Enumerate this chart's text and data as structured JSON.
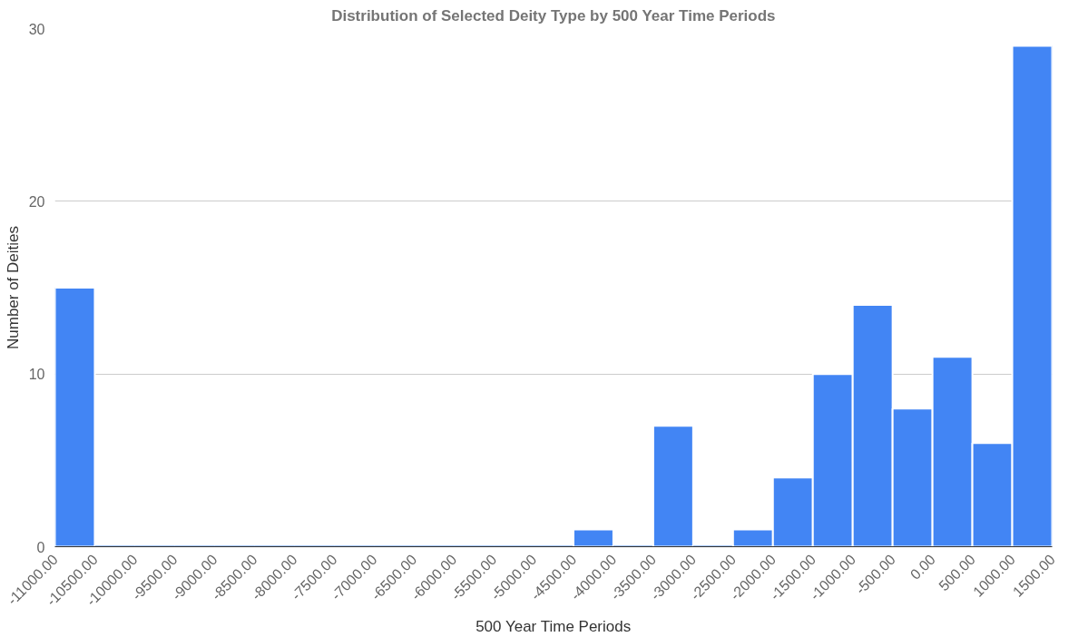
{
  "chart_data": {
    "type": "histogram",
    "title": "Distribution of Selected Deity Type by 500 Year Time Periods",
    "xlabel": "500 Year Time Periods",
    "ylabel": "Number of Deities",
    "bins": [
      -11000,
      -10500,
      -10000,
      -9500,
      -9000,
      -8500,
      -8000,
      -7500,
      -7000,
      -6500,
      -6000,
      -5500,
      -5000,
      -4500,
      -4000,
      -3500,
      -3000,
      -2500,
      -2000,
      -1500,
      -1000,
      -500,
      0,
      500,
      1000,
      1500
    ],
    "values": [
      15,
      0,
      0,
      0,
      0,
      0,
      0,
      0,
      0,
      0,
      0,
      0,
      0,
      1,
      0,
      7,
      0,
      1,
      4,
      10,
      14,
      8,
      11,
      6,
      29
    ],
    "color": "#4285f4",
    "xlim": [
      -11000,
      1500
    ],
    "ylim": [
      0,
      30
    ],
    "xticks": [
      {
        "value": -11000,
        "label": "-11000.00"
      },
      {
        "value": -10500,
        "label": "-10500.00"
      },
      {
        "value": -10000,
        "label": "-10000.00"
      },
      {
        "value": -9500,
        "label": "-9500.00"
      },
      {
        "value": -9000,
        "label": "-9000.00"
      },
      {
        "value": -8500,
        "label": "-8500.00"
      },
      {
        "value": -8000,
        "label": "-8000.00"
      },
      {
        "value": -7500,
        "label": "-7500.00"
      },
      {
        "value": -7000,
        "label": "-7000.00"
      },
      {
        "value": -6500,
        "label": "-6500.00"
      },
      {
        "value": -6000,
        "label": "-6000.00"
      },
      {
        "value": -5500,
        "label": "-5500.00"
      },
      {
        "value": -5000,
        "label": "-5000.00"
      },
      {
        "value": -4500,
        "label": "-4500.00"
      },
      {
        "value": -4000,
        "label": "-4000.00"
      },
      {
        "value": -3500,
        "label": "-3500.00"
      },
      {
        "value": -3000,
        "label": "-3000.00"
      },
      {
        "value": -2500,
        "label": "-2500.00"
      },
      {
        "value": -2000,
        "label": "-2000.00"
      },
      {
        "value": -1500,
        "label": "-1500.00"
      },
      {
        "value": -1000,
        "label": "-1000.00"
      },
      {
        "value": -500,
        "label": "-500.00"
      },
      {
        "value": 0,
        "label": "0.00"
      },
      {
        "value": 500,
        "label": "500.00"
      },
      {
        "value": 1000,
        "label": "1000.00"
      },
      {
        "value": 1500,
        "label": "1500.00"
      }
    ],
    "yticks": [
      0,
      10,
      20,
      30
    ],
    "grid": "y"
  }
}
